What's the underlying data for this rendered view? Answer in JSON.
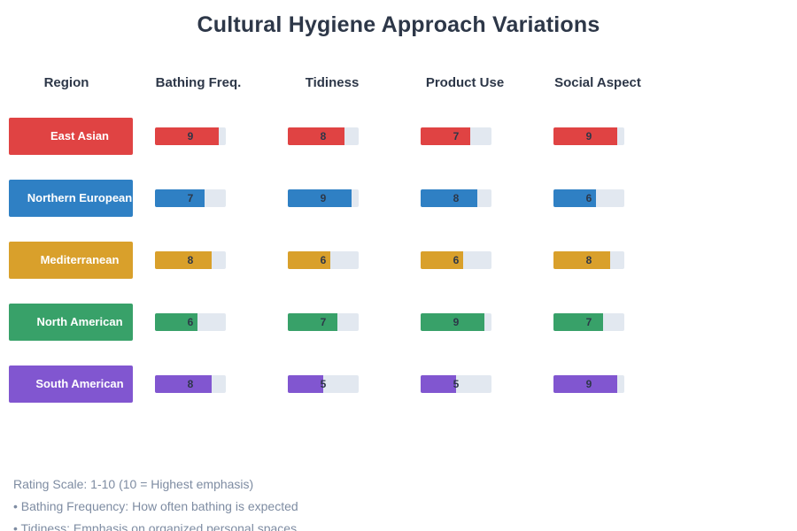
{
  "title": "Cultural Hygiene Approach Variations",
  "columns": [
    "Region",
    "Bathing Freq.",
    "Tidiness",
    "Product Use",
    "Social Aspect"
  ],
  "rows": [
    {
      "region": "East Asian",
      "color": "#E04343",
      "values": [
        9,
        8,
        7,
        9
      ]
    },
    {
      "region": "Northern European",
      "color": "#2F80C4",
      "values": [
        7,
        9,
        8,
        6
      ]
    },
    {
      "region": "Mediterranean",
      "color": "#D9A02B",
      "values": [
        8,
        6,
        6,
        8
      ]
    },
    {
      "region": "North American",
      "color": "#38A169",
      "values": [
        6,
        7,
        9,
        7
      ]
    },
    {
      "region": "South American",
      "color": "#8156D0",
      "values": [
        8,
        5,
        5,
        9
      ]
    }
  ],
  "footnotes": [
    "Rating Scale: 1-10 (10 = Highest emphasis)",
    "• Bathing Frequency: How often bathing is expected",
    "• Tidiness: Emphasis on organized personal spaces"
  ],
  "colors": {
    "track": "#E2E8F0",
    "heading": "#2D3748",
    "value_text": "#2D3748",
    "footnote_text": "#7E8CA2"
  },
  "chart_data": {
    "type": "bar",
    "orientation": "horizontal",
    "title": "Cultural Hygiene Approach Variations",
    "categories": [
      "East Asian",
      "Northern European",
      "Mediterranean",
      "North American",
      "South American"
    ],
    "series": [
      {
        "name": "Bathing Freq.",
        "values": [
          9,
          7,
          8,
          6,
          8
        ]
      },
      {
        "name": "Tidiness",
        "values": [
          8,
          9,
          6,
          7,
          5
        ]
      },
      {
        "name": "Product Use",
        "values": [
          7,
          8,
          6,
          9,
          5
        ]
      },
      {
        "name": "Social Aspect",
        "values": [
          9,
          6,
          8,
          7,
          9
        ]
      }
    ],
    "value_range": [
      0,
      10
    ],
    "category_colors": [
      "#E04343",
      "#2F80C4",
      "#D9A02B",
      "#38A169",
      "#8156D0"
    ],
    "legend": "none",
    "grid": false,
    "annotations": [
      "Rating Scale: 1-10 (10 = Highest emphasis)",
      "• Bathing Frequency: How often bathing is expected",
      "• Tidiness: Emphasis on organized personal spaces"
    ]
  }
}
